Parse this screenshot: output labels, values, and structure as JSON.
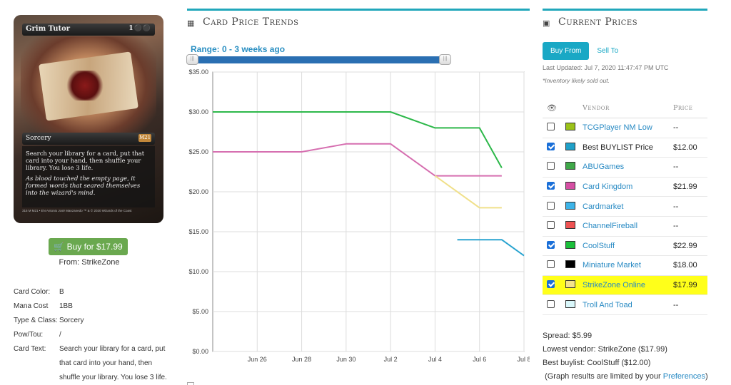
{
  "card": {
    "name": "Grim Tutor",
    "mana_symbols": "1⚫⚫",
    "type_line": "Sorcery",
    "set_symbol": "M21",
    "rules_text": "Search your library for a card, put that card into your hand, then shuffle your library. You lose 3 life.",
    "flavor_text": "As blood touched the empty page, it formed words that seared themselves into the wizard's mind.",
    "footer": "315 M  M21 • EN  Antonio José Manzanedo   ™ & © 2020 Wizards of the Coast"
  },
  "buy": {
    "label": "Buy for $17.99",
    "from": "From: StrikeZone"
  },
  "attributes": [
    {
      "key": "Card Color:",
      "value": "B"
    },
    {
      "key": "Mana Cost",
      "value": "1BB"
    },
    {
      "key": "Type & Class:",
      "value": "Sorcery"
    },
    {
      "key": "Pow/Tou:",
      "value": "/"
    },
    {
      "key": "Card Text:",
      "value": "Search your library for a card, put that card into your hand, then shuffle your library. You lose 3 life."
    }
  ],
  "trends": {
    "title": "Card Price Trends",
    "icon": "calendar-icon",
    "range_label": "Range: 0 - 3 weeks ago"
  },
  "chart_data": {
    "type": "line",
    "x_ticks": [
      "Jun 26",
      "Jun 28",
      "Jun 30",
      "Jul 2",
      "Jul 4",
      "Jul 6",
      "Jul 8"
    ],
    "y_ticks": [
      "$0.00",
      "$5.00",
      "$10.00",
      "$15.00",
      "$20.00",
      "$25.00",
      "$30.00",
      "$35.00"
    ],
    "xlim": [
      24,
      38
    ],
    "ylim": [
      0,
      35
    ],
    "grid": true,
    "series": [
      {
        "name": "CoolStuff",
        "color": "#2db84a",
        "x": [
          24,
          26,
          28,
          30,
          32,
          34,
          36,
          37
        ],
        "y": [
          30,
          30,
          30,
          30,
          30,
          28,
          28,
          23
        ]
      },
      {
        "name": "Card Kingdom",
        "color": "#d66fb0",
        "x": [
          24,
          26,
          28,
          30,
          32,
          34,
          36,
          37
        ],
        "y": [
          25,
          25,
          25,
          26,
          26,
          22,
          22,
          22
        ]
      },
      {
        "name": "StrikeZone Online",
        "color": "#f0e08a",
        "x": [
          34,
          36,
          37
        ],
        "y": [
          22,
          18,
          18
        ]
      },
      {
        "name": "Best BUYLIST Price",
        "color": "#2aa4d0",
        "x": [
          35,
          37,
          38
        ],
        "y": [
          14,
          14,
          12
        ]
      }
    ]
  },
  "prices": {
    "title": "Current Prices",
    "icon": "money-icon",
    "tab_buy": "Buy From",
    "tab_sell": "Sell To",
    "last_updated": "Last Updated: Jul 7, 2020 11:47:47 PM UTC",
    "inventory_note": "*Inventory likely sold out.",
    "col_vendor": "Vendor",
    "col_price": "Price",
    "rows": [
      {
        "vendor": "TCGPlayer NM Low",
        "price": "--",
        "checked": false,
        "color": "#9bc219",
        "link": true,
        "highlight": false
      },
      {
        "vendor": "Best BUYLIST Price",
        "price": "$12.00",
        "checked": true,
        "color": "#1fa0c8",
        "link": false,
        "highlight": false
      },
      {
        "vendor": "ABUGames",
        "price": "--",
        "checked": false,
        "color": "#3fa849",
        "link": true,
        "highlight": false
      },
      {
        "vendor": "Card Kingdom",
        "price": "$21.99",
        "checked": true,
        "color": "#d54fa3",
        "link": true,
        "highlight": false
      },
      {
        "vendor": "Cardmarket",
        "price": "--",
        "checked": false,
        "color": "#3db4e8",
        "link": true,
        "highlight": false
      },
      {
        "vendor": "ChannelFireball",
        "price": "--",
        "checked": false,
        "color": "#ee5252",
        "link": true,
        "highlight": false
      },
      {
        "vendor": "CoolStuff",
        "price": "$22.99",
        "checked": true,
        "color": "#1bbf3a",
        "link": true,
        "highlight": false
      },
      {
        "vendor": "Miniature Market",
        "price": "$18.00",
        "checked": false,
        "color": "#000000",
        "link": true,
        "highlight": false
      },
      {
        "vendor": "StrikeZone Online",
        "price": "$17.99",
        "checked": true,
        "color": "#f3e38a",
        "link": true,
        "highlight": true
      },
      {
        "vendor": "Troll And Toad",
        "price": "--",
        "checked": false,
        "color": "#d9f7fa",
        "link": true,
        "highlight": false
      }
    ],
    "spread": "Spread: $5.99",
    "lowest_vendor": "Lowest vendor: StrikeZone ($17.99)",
    "best_buylist": "Best buylist: CoolStuff ($12.00)",
    "graph_note_prefix": "(Graph results are limited by your ",
    "graph_note_link": "Preferences",
    "graph_note_suffix": ")"
  }
}
